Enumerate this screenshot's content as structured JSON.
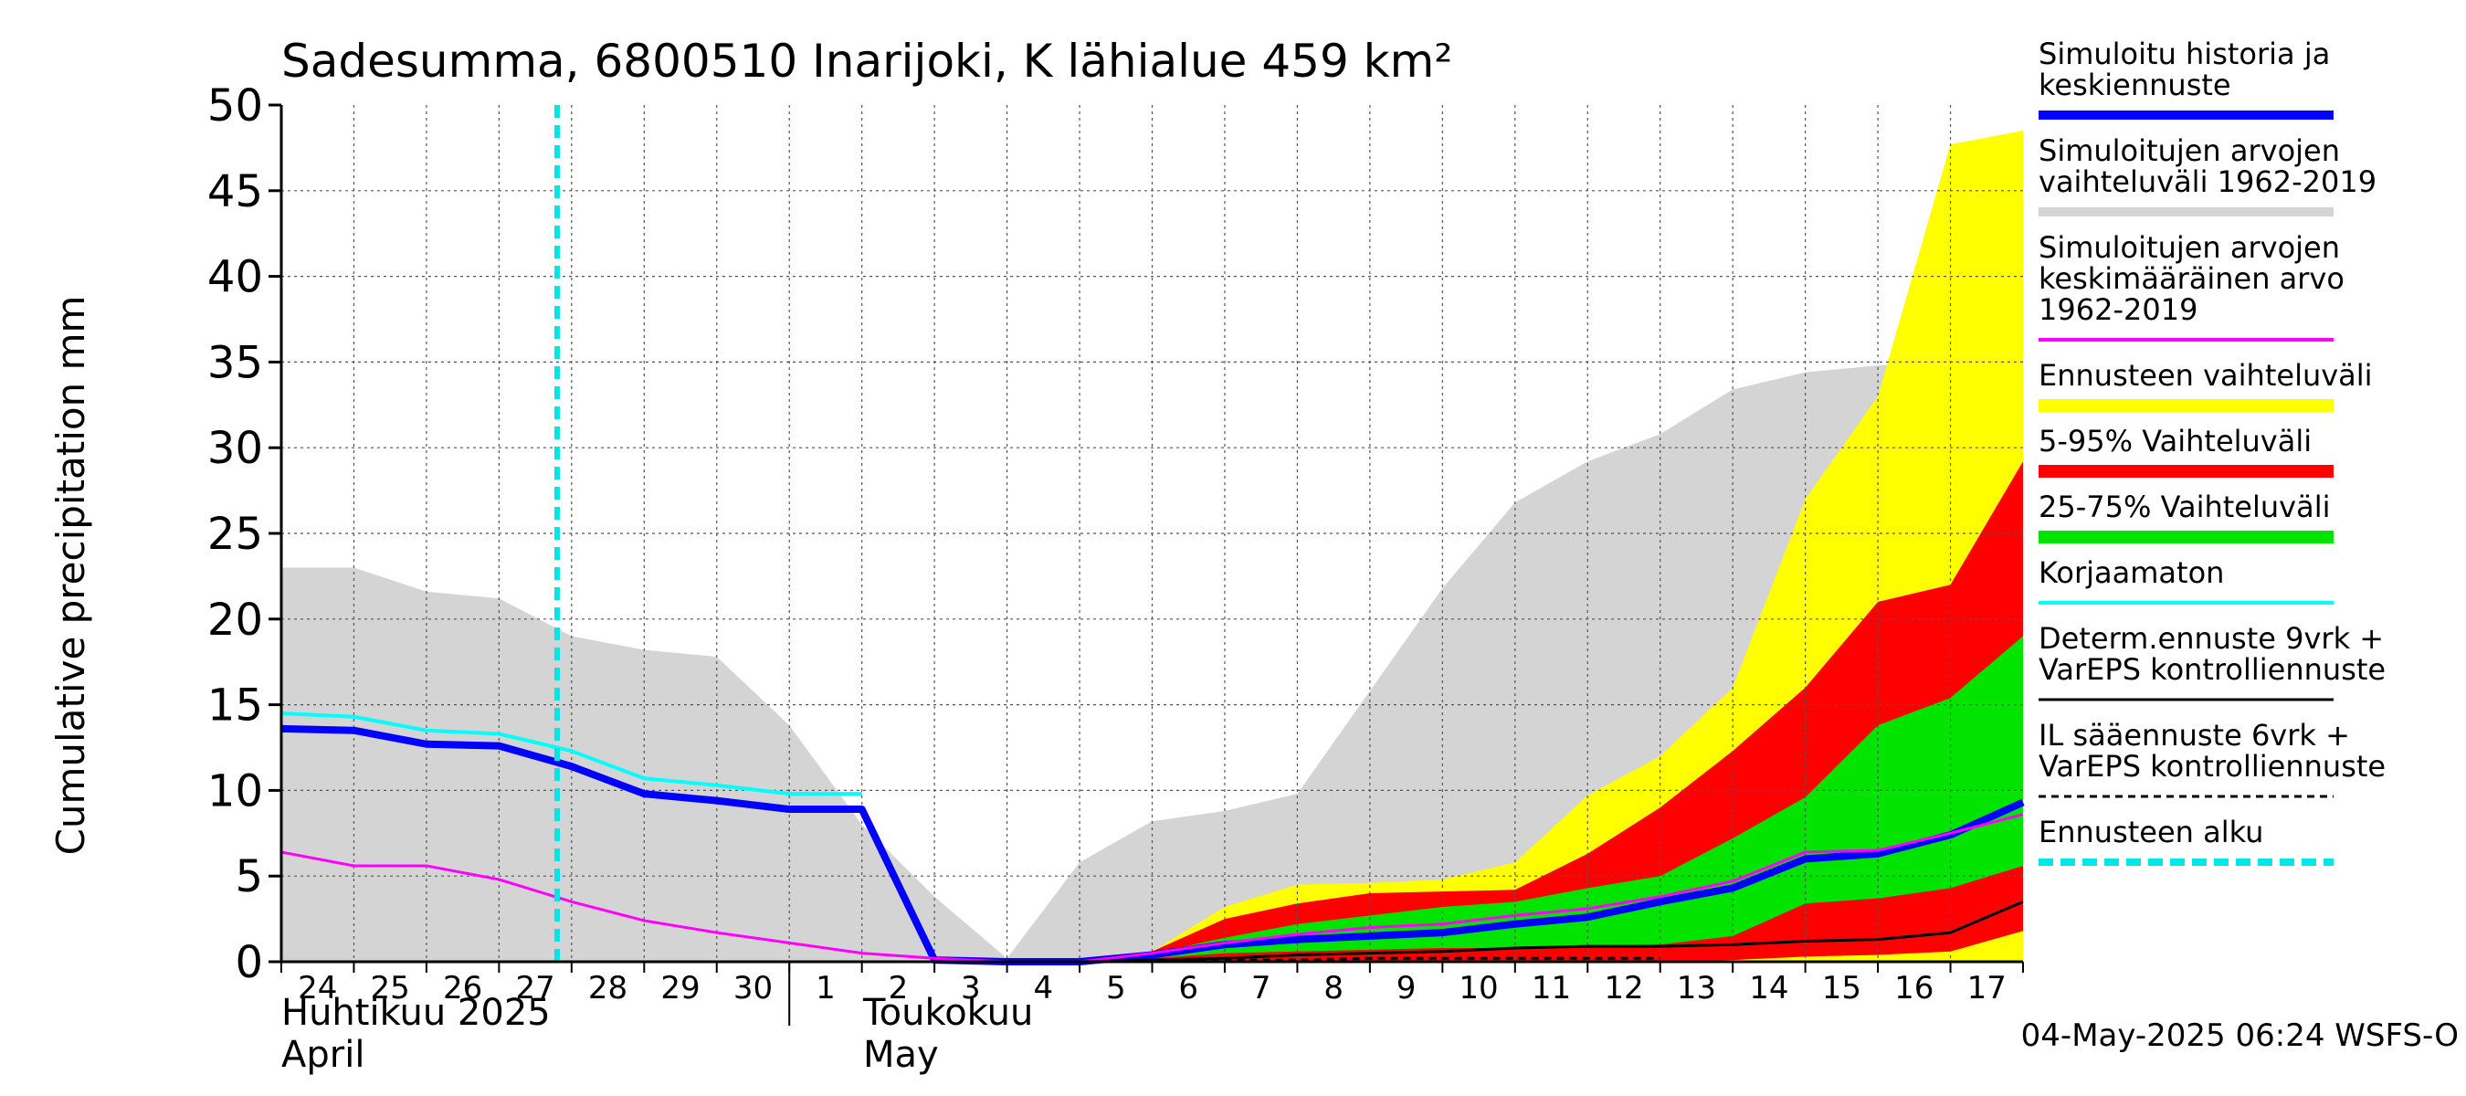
{
  "chart_data": {
    "type": "area",
    "title": "Sadesumma, 6800510 Inarijoki, K lähialue 459 km²",
    "ylabel": "Cumulative precipitation   mm",
    "xlabel": "",
    "ylim": [
      0,
      50
    ],
    "yticks": [
      0,
      5,
      10,
      15,
      20,
      25,
      30,
      35,
      40,
      45,
      50
    ],
    "grid": true,
    "legend_position": "right",
    "x": [
      "24",
      "25",
      "26",
      "27",
      "28",
      "29",
      "30",
      "1",
      "2",
      "3",
      "4",
      "5",
      "6",
      "7",
      "8",
      "9",
      "10",
      "11",
      "12",
      "13",
      "14",
      "15",
      "16",
      "17"
    ],
    "month_labels": {
      "april_fi": "Huhtikuu  2025",
      "april_en": "April",
      "may_fi": "Toukokuu",
      "may_en": "May"
    },
    "timestamp": "04-May-2025 06:24 WSFS-O",
    "forecast_start": 3.8,
    "series": [
      {
        "name": "Simuloitujen arvojen vaihteluväli 1962-2019",
        "kind": "band",
        "color": "#d4d4d4",
        "x": [
          0,
          1,
          2,
          3,
          4,
          5,
          6,
          7,
          8,
          9,
          10,
          11,
          12,
          13,
          14,
          15,
          16,
          17,
          18,
          19,
          20,
          21,
          22,
          23,
          24
        ],
        "upper": [
          23.0,
          23.0,
          21.6,
          21.2,
          19.0,
          18.2,
          17.8,
          13.8,
          8.0,
          3.8,
          0.2,
          5.8,
          8.2,
          8.8,
          9.8,
          15.8,
          21.8,
          26.8,
          29.2,
          30.8,
          33.4,
          34.4,
          34.8,
          34.9,
          35.0
        ],
        "lower": [
          0,
          0,
          0,
          0,
          0,
          0,
          0,
          0,
          0,
          0,
          0,
          0,
          0,
          0,
          0,
          0,
          0,
          0,
          0,
          0,
          0,
          0,
          0,
          0,
          0
        ]
      },
      {
        "name": "Ennusteen vaihteluväli",
        "kind": "band",
        "color": "#ffff00",
        "x": [
          10,
          11,
          12,
          13,
          14,
          15,
          16,
          17,
          18,
          19,
          20,
          21,
          22,
          23,
          24
        ],
        "upper": [
          0,
          0,
          0.6,
          3.2,
          4.5,
          4.6,
          4.8,
          5.8,
          9.7,
          12.0,
          16.0,
          27.0,
          33.0,
          47.7,
          48.5
        ],
        "lower": [
          0,
          0,
          0,
          0,
          0,
          0,
          0,
          0,
          0,
          0,
          0,
          0,
          0,
          0,
          0
        ]
      },
      {
        "name": "5-95% Vaihteluväli",
        "kind": "band",
        "color": "#ff0000",
        "x": [
          10,
          11,
          12,
          13,
          14,
          15,
          16,
          17,
          18,
          19,
          20,
          21,
          22,
          23,
          24
        ],
        "upper": [
          0,
          0,
          0.6,
          2.5,
          3.4,
          4.0,
          4.1,
          4.2,
          6.3,
          9.0,
          12.3,
          16.0,
          21.0,
          22.0,
          29.2
        ],
        "lower": [
          0,
          0,
          0,
          0,
          0,
          0,
          0,
          0,
          0,
          0,
          0.1,
          0.3,
          0.4,
          0.6,
          1.8
        ]
      },
      {
        "name": "25-75% Vaihteluväli",
        "kind": "band",
        "color": "#00e400",
        "x": [
          10,
          11,
          12,
          13,
          14,
          15,
          16,
          17,
          18,
          19,
          20,
          21,
          22,
          23,
          24
        ],
        "upper": [
          0,
          0,
          0.5,
          1.4,
          2.2,
          2.7,
          3.2,
          3.5,
          4.3,
          5.0,
          7.2,
          9.6,
          13.8,
          15.4,
          19.0
        ],
        "lower": [
          0,
          0,
          0.2,
          0.5,
          0.6,
          0.7,
          0.8,
          0.8,
          0.9,
          1.0,
          1.5,
          3.4,
          3.7,
          4.3,
          5.6
        ]
      },
      {
        "name": "Korjaamaton",
        "kind": "line",
        "color": "#00ffff",
        "width": 4,
        "x": [
          0,
          1,
          2,
          3,
          4,
          5,
          6,
          7,
          8
        ],
        "values": [
          14.5,
          14.3,
          13.5,
          13.3,
          12.3,
          10.7,
          10.3,
          9.8,
          9.8
        ]
      },
      {
        "name": "Simuloitu historia ja keskiennuste",
        "kind": "line",
        "color": "#0000ff",
        "width": 8,
        "x": [
          0,
          1,
          2,
          3,
          4,
          5,
          6,
          7,
          8,
          9,
          10,
          11,
          12,
          13,
          14,
          15,
          16,
          17,
          18,
          19,
          20,
          21,
          22,
          23,
          24
        ],
        "values": [
          13.6,
          13.5,
          12.7,
          12.6,
          11.4,
          9.8,
          9.4,
          8.9,
          8.9,
          0.1,
          0,
          0,
          0.4,
          1.0,
          1.3,
          1.5,
          1.7,
          2.2,
          2.6,
          3.5,
          4.3,
          6.0,
          6.3,
          7.4,
          9.3
        ]
      },
      {
        "name": "Simuloitujen arvojen keskimääräinen arvo 1962-2019",
        "kind": "line",
        "color": "#ff00ff",
        "width": 3,
        "x": [
          0,
          1,
          2,
          3,
          4,
          5,
          6,
          7,
          8,
          9,
          10,
          11,
          12,
          13,
          14,
          15,
          16,
          17,
          18,
          19,
          20,
          21,
          22,
          23,
          24
        ],
        "values": [
          6.4,
          5.6,
          5.6,
          4.8,
          3.5,
          2.4,
          1.7,
          1.1,
          0.5,
          0.2,
          0,
          0,
          0.5,
          1.1,
          1.6,
          2.0,
          2.2,
          2.7,
          3.1,
          3.8,
          4.7,
          6.4,
          6.5,
          7.5,
          8.6
        ]
      },
      {
        "name": "Determ.ennuste 9vrk + VarEPS kontrolliennuste",
        "kind": "line",
        "color": "#000000",
        "width": 3,
        "x": [
          10,
          11,
          12,
          13,
          14,
          15,
          16,
          17,
          18,
          19,
          20,
          21,
          22,
          23,
          24
        ],
        "values": [
          0,
          0,
          0.1,
          0.2,
          0.4,
          0.5,
          0.6,
          0.8,
          0.9,
          0.9,
          1.0,
          1.2,
          1.3,
          1.7,
          3.5
        ]
      },
      {
        "name": "IL sääennuste 6vrk + VarEPS kontrolliennuste",
        "kind": "dashed",
        "color": "#000000",
        "width": 3,
        "x": [
          10,
          11,
          12,
          13,
          14,
          15,
          16,
          17,
          18,
          19
        ],
        "values": [
          0,
          0,
          0,
          0.1,
          0.1,
          0.2,
          0.2,
          0.2,
          0.2,
          0.2
        ]
      },
      {
        "name": "Ennusteen alku",
        "kind": "vline",
        "color": "#00e5e5",
        "width": 6
      }
    ]
  },
  "legend": [
    {
      "lines": [
        "Simuloitu historia ja",
        "keskiennuste"
      ],
      "color": "#0000ff",
      "style": "solid",
      "thick": 10
    },
    {
      "lines": [
        "Simuloitujen arvojen",
        "vaihteluväli 1962-2019"
      ],
      "color": "#d4d4d4",
      "style": "solid",
      "thick": 10
    },
    {
      "lines": [
        "Simuloitujen arvojen",
        "keskimääräinen arvo",
        "   1962-2019"
      ],
      "color": "#ff00ff",
      "style": "solid",
      "thick": 4
    },
    {
      "lines": [
        "Ennusteen vaihteluväli"
      ],
      "color": "#ffff00",
      "style": "solid",
      "thick": 14
    },
    {
      "lines": [
        "5-95% Vaihteluväli"
      ],
      "color": "#ff0000",
      "style": "solid",
      "thick": 14
    },
    {
      "lines": [
        "25-75% Vaihteluväli"
      ],
      "color": "#00e400",
      "style": "solid",
      "thick": 14
    },
    {
      "lines": [
        "Korjaamaton"
      ],
      "color": "#00ffff",
      "style": "solid",
      "thick": 4
    },
    {
      "lines": [
        "Determ.ennuste 9vrk  +",
        "VarEPS kontrolliennuste"
      ],
      "color": "#000000",
      "style": "solid",
      "thick": 3
    },
    {
      "lines": [
        "IL sääennuste 6vrk  +",
        "  VarEPS kontrolliennuste"
      ],
      "color": "#000000",
      "style": "dashed",
      "thick": 3
    },
    {
      "lines": [
        "Ennusteen alku"
      ],
      "color": "#00e5e5",
      "style": "dashed",
      "thick": 8
    }
  ]
}
